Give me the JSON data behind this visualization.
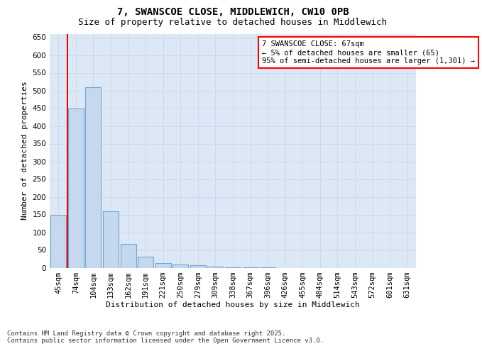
{
  "title": "7, SWANSCOE CLOSE, MIDDLEWICH, CW10 0PB",
  "subtitle": "Size of property relative to detached houses in Middlewich",
  "xlabel": "Distribution of detached houses by size in Middlewich",
  "ylabel": "Number of detached properties",
  "categories": [
    "45sqm",
    "74sqm",
    "104sqm",
    "133sqm",
    "162sqm",
    "191sqm",
    "221sqm",
    "250sqm",
    "279sqm",
    "309sqm",
    "338sqm",
    "367sqm",
    "396sqm",
    "426sqm",
    "455sqm",
    "484sqm",
    "514sqm",
    "543sqm",
    "572sqm",
    "601sqm",
    "631sqm"
  ],
  "values": [
    150,
    450,
    510,
    160,
    67,
    31,
    13,
    10,
    7,
    3,
    2,
    1,
    1,
    0,
    0,
    0,
    0,
    0,
    0,
    0,
    0
  ],
  "bar_color": "#c5d8ee",
  "bar_edge_color": "#6fa8d4",
  "vline_x": 0.5,
  "vline_color": "red",
  "vline_linewidth": 1.5,
  "annotation_text": "7 SWANSCOE CLOSE: 67sqm\n← 5% of detached houses are smaller (65)\n95% of semi-detached houses are larger (1,301) →",
  "annotation_box_color": "white",
  "annotation_box_edgecolor": "red",
  "ylim": [
    0,
    660
  ],
  "yticks": [
    0,
    50,
    100,
    150,
    200,
    250,
    300,
    350,
    400,
    450,
    500,
    550,
    600,
    650
  ],
  "grid_color": "#c8d8ec",
  "background_color": "#dce8f5",
  "footer_text": "Contains HM Land Registry data © Crown copyright and database right 2025.\nContains public sector information licensed under the Open Government Licence v3.0.",
  "title_fontsize": 10,
  "subtitle_fontsize": 9,
  "axis_label_fontsize": 8,
  "tick_fontsize": 7.5,
  "annotation_fontsize": 7.5,
  "footer_fontsize": 6.5
}
